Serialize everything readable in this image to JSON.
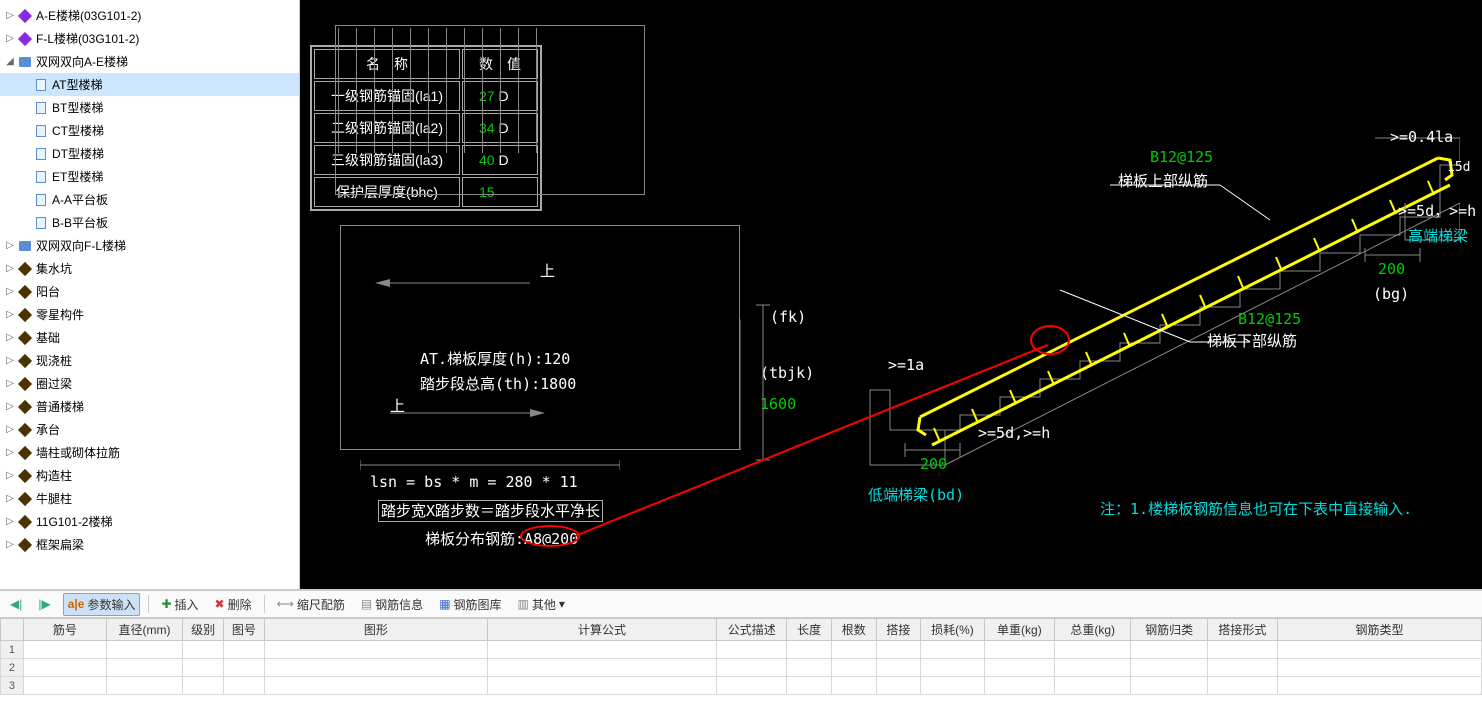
{
  "tree": {
    "items": [
      {
        "indent": 0,
        "toggle": "▷",
        "icon": "diamond-purple",
        "label": "A-E楼梯(03G101-2)",
        "sel": false
      },
      {
        "indent": 0,
        "toggle": "▷",
        "icon": "diamond-purple",
        "label": "F-L楼梯(03G101-2)",
        "sel": false
      },
      {
        "indent": 0,
        "toggle": "◢",
        "icon": "book-icon",
        "label": "双网双向A-E楼梯",
        "sel": false
      },
      {
        "indent": 1,
        "toggle": "",
        "icon": "page-icon",
        "label": "AT型楼梯",
        "sel": true
      },
      {
        "indent": 1,
        "toggle": "",
        "icon": "page-icon",
        "label": "BT型楼梯",
        "sel": false
      },
      {
        "indent": 1,
        "toggle": "",
        "icon": "page-icon",
        "label": "CT型楼梯",
        "sel": false
      },
      {
        "indent": 1,
        "toggle": "",
        "icon": "page-icon",
        "label": "DT型楼梯",
        "sel": false
      },
      {
        "indent": 1,
        "toggle": "",
        "icon": "page-icon",
        "label": "ET型楼梯",
        "sel": false
      },
      {
        "indent": 1,
        "toggle": "",
        "icon": "page-icon",
        "label": "A-A平台板",
        "sel": false
      },
      {
        "indent": 1,
        "toggle": "",
        "icon": "page-icon",
        "label": "B-B平台板",
        "sel": false
      },
      {
        "indent": 0,
        "toggle": "▷",
        "icon": "book-icon",
        "label": "双网双向F-L楼梯",
        "sel": false
      },
      {
        "indent": 0,
        "toggle": "▷",
        "icon": "diamond-dark",
        "label": "集水坑",
        "sel": false
      },
      {
        "indent": 0,
        "toggle": "▷",
        "icon": "diamond-dark",
        "label": "阳台",
        "sel": false
      },
      {
        "indent": 0,
        "toggle": "▷",
        "icon": "diamond-dark",
        "label": "零星构件",
        "sel": false
      },
      {
        "indent": 0,
        "toggle": "▷",
        "icon": "diamond-dark",
        "label": "基础",
        "sel": false
      },
      {
        "indent": 0,
        "toggle": "▷",
        "icon": "diamond-dark",
        "label": "现浇桩",
        "sel": false
      },
      {
        "indent": 0,
        "toggle": "▷",
        "icon": "diamond-dark",
        "label": "圈过梁",
        "sel": false
      },
      {
        "indent": 0,
        "toggle": "▷",
        "icon": "diamond-dark",
        "label": "普通楼梯",
        "sel": false
      },
      {
        "indent": 0,
        "toggle": "▷",
        "icon": "diamond-dark",
        "label": "承台",
        "sel": false
      },
      {
        "indent": 0,
        "toggle": "▷",
        "icon": "diamond-dark",
        "label": "墙柱或砌体拉筋",
        "sel": false
      },
      {
        "indent": 0,
        "toggle": "▷",
        "icon": "diamond-dark",
        "label": "构造柱",
        "sel": false
      },
      {
        "indent": 0,
        "toggle": "▷",
        "icon": "diamond-dark",
        "label": "牛腿柱",
        "sel": false
      },
      {
        "indent": 0,
        "toggle": "▷",
        "icon": "diamond-dark",
        "label": "11G101-2楼梯",
        "sel": false
      },
      {
        "indent": 0,
        "toggle": "▷",
        "icon": "diamond-dark",
        "label": "框架扁梁",
        "sel": false
      }
    ]
  },
  "param_table": {
    "header": {
      "c1": "名　称",
      "c2": "数　值"
    },
    "rows": [
      {
        "name": "一级钢筋锚固(la1)",
        "val": "27",
        "unit": "D"
      },
      {
        "name": "二级钢筋锚固(la2)",
        "val": "34",
        "unit": "D"
      },
      {
        "name": "三级钢筋锚固(la3)",
        "val": "40",
        "unit": "D"
      },
      {
        "name": "保护层厚度(bhc)",
        "val": "15",
        "unit": ""
      }
    ]
  },
  "plan_labels": {
    "thickness_label": "AT.梯板厚度(h):",
    "thickness_val": "120",
    "th_label": "踏步段总高(th):",
    "th_val": "1800",
    "lsn": "lsn = bs * m = ",
    "lsn_val": "280 * 11",
    "step_formula": "踏步宽X踏步数＝踏步段水平净长",
    "dist_label": "梯板分布钢筋:",
    "dist_val": "A8@200",
    "up1": "上",
    "up2": "上"
  },
  "section_labels": {
    "fk": "(fk)",
    "tbjk": "(tbjk)",
    "tbjk_val": "1600",
    "la_low": ">=1a",
    "hook_low": ">=5d,>=h",
    "low_200": "200",
    "low_beam": "低端梯梁(bd)",
    "top_rebar1": "B12@125",
    "top_rebar_label": "梯板上部纵筋",
    "bot_rebar1": "B12@125",
    "bot_rebar_label": "梯板下部纵筋",
    "la_high": ">=0.4la",
    "d15": "15d",
    "hook_high": ">=5d，>=h",
    "high_200": "200",
    "high_bg": "(bg)",
    "high_beam": "高端梯梁",
    "note": "注：1.楼梯板钢筋信息也可在下表中直接输入."
  },
  "toolbar": {
    "param": "参数输入",
    "insert": "插入",
    "delete": "删除",
    "ruler": "缩尺配筋",
    "info": "钢筋信息",
    "lib": "钢筋图库",
    "other": "其他"
  },
  "grid": {
    "cols": [
      "筋号",
      "直径(mm)",
      "级别",
      "图号",
      "图形",
      "计算公式",
      "公式描述",
      "长度",
      "根数",
      "搭接",
      "损耗(%)",
      "单重(kg)",
      "总重(kg)",
      "钢筋归类",
      "搭接形式",
      "钢筋类型"
    ],
    "widths": [
      65,
      60,
      32,
      32,
      175,
      180,
      55,
      35,
      35,
      35,
      50,
      55,
      60,
      60,
      55,
      160
    ],
    "rows": [
      "1",
      "2",
      "3"
    ]
  },
  "colors": {
    "green": "#00cc00",
    "cyan": "#00dddd",
    "yellow": "#ffff00",
    "red": "#ff0000",
    "gray": "#888888"
  }
}
